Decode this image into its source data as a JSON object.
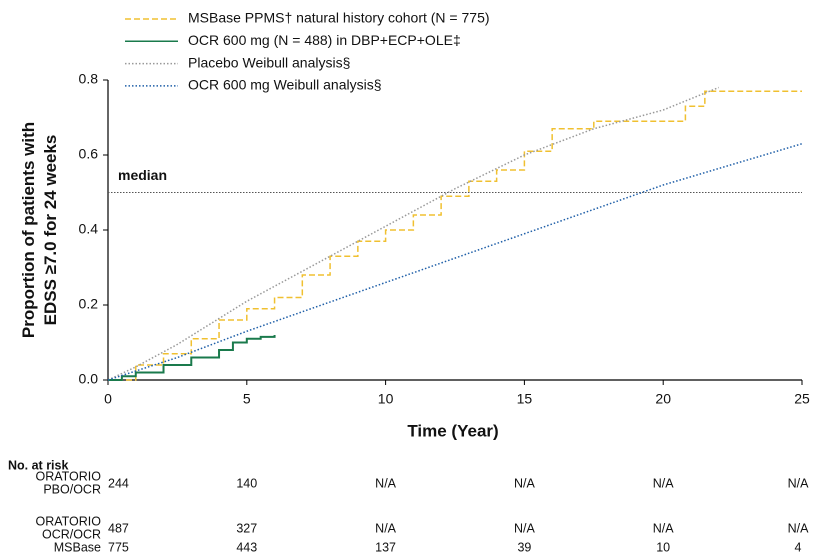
{
  "chart_data": {
    "type": "line",
    "xlabel": "Time (Year)",
    "ylabel": [
      "Proportion of patients with",
      "EDSS ≥7.0 for 24 weeks"
    ],
    "xlim": [
      0,
      25
    ],
    "xticks": [
      0,
      5,
      10,
      15,
      20,
      25
    ],
    "ylim": [
      0,
      0.8
    ],
    "yticks": [
      {
        "value": 0,
        "label": "0.0"
      },
      0.2,
      0.4,
      0.6,
      0.8
    ],
    "hline": {
      "value": 0.5,
      "label": "median",
      "color": "#555555"
    },
    "series": [
      {
        "name": "MSBase PPMS† natural history cohort (N = 775)",
        "color": "#f0c030",
        "dash": "6,3",
        "step": true,
        "x": [
          0,
          1,
          2,
          3,
          4,
          5,
          6,
          7,
          8,
          9,
          10,
          11,
          12,
          13,
          14,
          15,
          16,
          17.5,
          20.8,
          21.5,
          25
        ],
        "values": [
          0,
          0.04,
          0.07,
          0.11,
          0.16,
          0.19,
          0.22,
          0.28,
          0.33,
          0.37,
          0.4,
          0.44,
          0.49,
          0.53,
          0.56,
          0.61,
          0.67,
          0.69,
          0.73,
          0.77,
          0.77
        ]
      },
      {
        "name": "OCR 600 mg (N = 488) in DBP+ECP+OLE‡",
        "color": "#1a7a4c",
        "dash": "",
        "step": true,
        "x": [
          0,
          0.5,
          1,
          2,
          3,
          4,
          4.5,
          5,
          5.5,
          6
        ],
        "values": [
          0,
          0.01,
          0.02,
          0.04,
          0.06,
          0.08,
          0.1,
          0.11,
          0.115,
          0.12
        ]
      },
      {
        "name": "Placebo Weibull analysis§",
        "color": "#999999",
        "dash": "1.5,2",
        "step": false,
        "x": [
          0,
          1,
          2.5,
          5,
          7.5,
          10,
          12.5,
          15,
          17.5,
          20,
          22
        ],
        "values": [
          0,
          0.035,
          0.095,
          0.21,
          0.31,
          0.41,
          0.51,
          0.6,
          0.67,
          0.72,
          0.78
        ]
      },
      {
        "name": "OCR 600 mg Weibull analysis§",
        "color": "#1f5fa8",
        "dash": "1.5,2",
        "step": false,
        "x": [
          0,
          2.5,
          5,
          7.5,
          10,
          12.5,
          15,
          17.5,
          20,
          22.5,
          25
        ],
        "values": [
          0,
          0.06,
          0.13,
          0.195,
          0.26,
          0.325,
          0.39,
          0.455,
          0.52,
          0.575,
          0.63
        ]
      }
    ],
    "risk_table": {
      "title": "No. at risk",
      "rows": [
        {
          "label": [
            "ORATORIO",
            "PBO/OCR"
          ],
          "values": [
            244,
            140,
            "N/A",
            "N/A",
            "N/A",
            "N/A"
          ]
        },
        {
          "label": [
            "ORATORIO",
            "OCR/OCR"
          ],
          "values": [
            487,
            327,
            "N/A",
            "N/A",
            "N/A",
            "N/A"
          ]
        },
        {
          "label": [
            "MSBase"
          ],
          "values": [
            775,
            443,
            137,
            39,
            10,
            4
          ]
        }
      ]
    }
  }
}
